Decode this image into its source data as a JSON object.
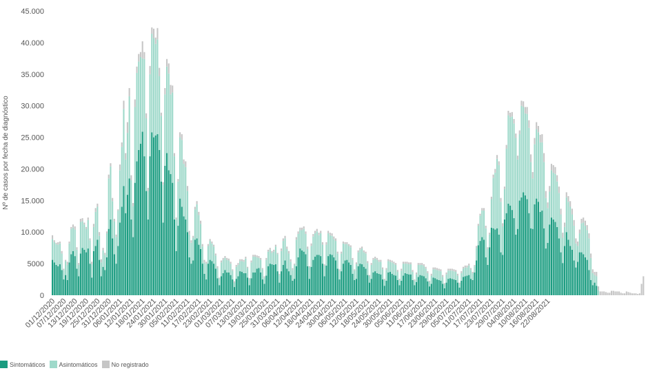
{
  "chart_data": {
    "type": "bar",
    "stacked": true,
    "ylabel": "Nº de casos por fecha de diagnóstico",
    "ylim": [
      0,
      45000
    ],
    "yticks": [
      0,
      5000,
      10000,
      15000,
      20000,
      25000,
      30000,
      35000,
      40000,
      45000
    ],
    "ytick_labels": [
      "0",
      "5000",
      "10.000",
      "15.000",
      "20.000",
      "25.000",
      "30.000",
      "35.000",
      "40.000",
      "45.000"
    ],
    "grid": false,
    "legend_position": "bottom-left",
    "x_start": "01/12/2020",
    "x_end": "25/08/2021",
    "x_tick_every_days": 6,
    "x_tick_labels": [
      "01/12/2020",
      "07/12/2020",
      "13/12/2020",
      "19/12/2020",
      "25/12/2020",
      "31/12/2020",
      "06/01/2021",
      "12/01/2021",
      "18/01/2021",
      "24/01/2021",
      "30/01/2021",
      "05/02/2021",
      "11/02/2021",
      "17/02/2021",
      "23/02/2021",
      "01/03/2021",
      "07/03/2021",
      "13/03/2021",
      "19/03/2021",
      "25/03/2021",
      "31/03/2021",
      "06/04/2021",
      "12/04/2021",
      "18/04/2021",
      "24/04/2021",
      "30/04/2021",
      "06/05/2021",
      "12/05/2021",
      "18/05/2021",
      "24/05/2021",
      "30/05/2021",
      "05/06/2021",
      "11/06/2021",
      "17/06/2021",
      "23/06/2021",
      "29/06/2021",
      "05/07/2021",
      "11/07/2021",
      "17/07/2021",
      "23/07/2021",
      "29/07/2021",
      "04/08/2021",
      "10/08/2021",
      "16/08/2021",
      "22/08/2021"
    ],
    "series": [
      {
        "name": "Sintomáticos",
        "color": "#1a9c80",
        "values": [
          5600,
          5200,
          4800,
          4600,
          4900,
          4000,
          2500,
          3200,
          2400,
          5200,
          6500,
          7000,
          6200,
          4200,
          3000,
          6600,
          7500,
          7200,
          6800,
          7400,
          5000,
          2800,
          7000,
          7800,
          8800,
          5600,
          3000,
          4500,
          4000,
          6000,
          10500,
          12000,
          9000,
          6500,
          5000,
          7800,
          11500,
          14000,
          17300,
          13000,
          15900,
          18500,
          12000,
          9200,
          17800,
          21200,
          23000,
          24000,
          25900,
          22000,
          16500,
          12000,
          22000,
          25800,
          25000,
          25300,
          25500,
          23000,
          18000,
          11500,
          20500,
          22500,
          19800,
          19200,
          17800,
          12000,
          7000,
          11000,
          15300,
          14000,
          12500,
          12000,
          10000,
          6000,
          5000,
          5500,
          8800,
          9000,
          8000,
          7300,
          5000,
          3400,
          2500,
          5000,
          5600,
          5400,
          5000,
          4200,
          2700,
          1600,
          3000,
          3500,
          4000,
          3600,
          3600,
          3200,
          2500,
          1300,
          2600,
          3000,
          3800,
          3700,
          3500,
          3500,
          2800,
          1600,
          2700,
          3600,
          3600,
          4200,
          4300,
          3600,
          2500,
          1800,
          3100,
          4600,
          5000,
          4900,
          4800,
          4900,
          3800,
          2000,
          3800,
          4800,
          5500,
          4200,
          3800,
          3200,
          2300,
          2600,
          4600,
          6000,
          7400,
          7100,
          6900,
          6500,
          4600,
          2600,
          4500,
          5600,
          6100,
          6400,
          6400,
          6200,
          5000,
          3000,
          4700,
          6200,
          6500,
          6400,
          6000,
          5500,
          4200,
          2500,
          3800,
          5000,
          5500,
          5600,
          5200,
          4800,
          3400,
          2400,
          2600,
          4600,
          5000,
          4900,
          4500,
          4200,
          3200,
          2000,
          2600,
          3600,
          3800,
          3500,
          3400,
          3300,
          2500,
          1500,
          2300,
          3600,
          3700,
          3400,
          3200,
          3100,
          2400,
          1600,
          2300,
          3100,
          3500,
          3400,
          3300,
          3300,
          2400,
          1600,
          2100,
          2900,
          3200,
          3100,
          3000,
          2700,
          2200,
          1400,
          1800,
          2800,
          2700,
          2500,
          2400,
          2300,
          1800,
          1100,
          2000,
          2600,
          2700,
          2600,
          2500,
          2400,
          2000,
          1200,
          2300,
          2900,
          3000,
          3100,
          3200,
          2600,
          2400,
          3600,
          5500,
          7900,
          8600,
          9200,
          8800,
          6000,
          4800,
          7600,
          10700,
          10600,
          10400,
          10600,
          9600,
          6800,
          6400,
          12000,
          13000,
          14500,
          14200,
          13500,
          12200,
          9600,
          10500,
          15000,
          15500,
          16300,
          15800,
          15200,
          13000,
          10600,
          10500,
          14400,
          15300,
          14800,
          13200,
          13400,
          10600,
          7400,
          8300,
          11200,
          12300,
          12000,
          11600,
          10800,
          9000,
          6800,
          5100,
          7800,
          10000,
          8800,
          7800,
          7200,
          5500,
          4400,
          5300,
          6800,
          6800,
          6500,
          6000,
          5600,
          4000,
          2400,
          1600,
          2000,
          1500
        ]
      },
      {
        "name": "Asintomáticos",
        "color": "#9ed9ca",
        "values": [
          3300,
          3200,
          3300,
          3400,
          3300,
          2600,
          1500,
          2200,
          2400,
          3000,
          4000,
          3700,
          4200,
          3000,
          1800,
          5000,
          4200,
          4000,
          3700,
          4500,
          3700,
          2100,
          3800,
          5400,
          5200,
          3800,
          2200,
          2600,
          2400,
          3800,
          8000,
          8400,
          5900,
          5200,
          4200,
          5600,
          8300,
          9500,
          12200,
          8500,
          9800,
          13000,
          6200,
          4900,
          12000,
          14000,
          14000,
          13700,
          11600,
          15400,
          11500,
          4500,
          13000,
          15600,
          15700,
          14500,
          15000,
          11700,
          10400,
          6000,
          11300,
          13700,
          15300,
          12600,
          14300,
          10000,
          5000,
          7000,
          9700,
          10600,
          8300,
          8300,
          6500,
          3600,
          3300,
          3600,
          4800,
          5400,
          4700,
          4000,
          2700,
          1800,
          2500,
          2800,
          3000,
          2800,
          2700,
          2100,
          1600,
          1000,
          2200,
          2100,
          1900,
          2000,
          1900,
          1800,
          1400,
          700,
          1900,
          1800,
          1600,
          1700,
          1800,
          2300,
          1500,
          900,
          2500,
          2500,
          2500,
          1800,
          1600,
          2000,
          1600,
          1000,
          2500,
          2300,
          2200,
          1800,
          2100,
          2800,
          2700,
          1200,
          3200,
          3800,
          3500,
          3100,
          2800,
          2100,
          1700,
          2200,
          4200,
          3700,
          2900,
          3200,
          3600,
          3200,
          2700,
          1800,
          3300,
          3700,
          3700,
          3700,
          3100,
          3600,
          3000,
          1700,
          3300,
          3600,
          3000,
          3000,
          2900,
          3100,
          2400,
          1400,
          2800,
          3200,
          2600,
          2500,
          2600,
          2800,
          2200,
          1500,
          2300,
          2200,
          2200,
          2500,
          2300,
          2400,
          1900,
          1000,
          2200,
          2000,
          2000,
          2100,
          1900,
          2000,
          1600,
          900,
          1700,
          1800,
          1600,
          1800,
          1800,
          1700,
          1300,
          800,
          1600,
          1900,
          1500,
          1600,
          1600,
          1600,
          1300,
          700,
          1200,
          1900,
          1600,
          1700,
          1600,
          1500,
          1300,
          700,
          1300,
          1300,
          1400,
          1500,
          1500,
          1500,
          1100,
          600,
          1300,
          1300,
          1200,
          1300,
          1300,
          1300,
          1100,
          600,
          1200,
          1300,
          1400,
          1300,
          1500,
          1400,
          1100,
          1000,
          2000,
          3100,
          4000,
          4200,
          4600,
          4600,
          2500,
          2000,
          4500,
          8000,
          9000,
          11000,
          11000,
          8000,
          4500,
          4800,
          10200,
          14000,
          14000,
          14800,
          15000,
          15300,
          11000,
          10500,
          14500,
          13500,
          13000,
          13500,
          13500,
          10500,
          8000,
          9500,
          11000,
          11000,
          11000,
          10800,
          10500,
          8000,
          5500,
          5200,
          7500,
          7400,
          7600,
          7200,
          7200,
          6000,
          4000,
          3000,
          5500,
          6000,
          6200,
          5600,
          5500,
          3800,
          2500,
          3000,
          4600,
          5000,
          5000,
          4700,
          5000,
          3500,
          1900,
          1200,
          1500,
          800
        ]
      },
      {
        "name": "No registrado",
        "color": "#c6c6c6",
        "values": [
          600,
          300,
          200,
          400,
          300,
          400,
          200,
          200,
          500,
          300,
          300,
          500,
          500,
          400,
          300,
          500,
          500,
          300,
          300,
          400,
          300,
          400,
          500,
          600,
          500,
          600,
          500,
          400,
          300,
          300,
          600,
          500,
          500,
          400,
          400,
          200,
          900,
          700,
          1300,
          1000,
          1700,
          1300,
          800,
          500,
          1200,
          1000,
          1200,
          800,
          2700,
          1100,
          800,
          500,
          1300,
          1000,
          1500,
          1000,
          1800,
          1300,
          500,
          400,
          1000,
          1200,
          1600,
          1500,
          1100,
          500,
          300,
          400,
          800,
          900,
          700,
          900,
          800,
          600,
          400,
          300,
          400,
          500,
          500,
          500,
          400,
          400,
          300,
          300,
          300,
          300,
          300,
          300,
          300,
          200,
          300,
          300,
          300,
          300,
          300,
          300,
          200,
          200,
          300,
          300,
          300,
          300,
          300,
          300,
          200,
          200,
          300,
          300,
          300,
          300,
          300,
          300,
          200,
          200,
          300,
          300,
          300,
          300,
          300,
          300,
          200,
          200,
          400,
          400,
          400,
          400,
          400,
          400,
          300,
          200,
          400,
          400,
          400,
          400,
          400,
          400,
          400,
          200,
          400,
          400,
          400,
          400,
          400,
          400,
          400,
          200,
          400,
          400,
          400,
          400,
          400,
          400,
          300,
          200,
          300,
          300,
          300,
          300,
          300,
          300,
          300,
          200,
          300,
          300,
          300,
          300,
          300,
          300,
          300,
          200,
          300,
          300,
          300,
          300,
          300,
          300,
          300,
          200,
          300,
          300,
          300,
          300,
          300,
          300,
          300,
          200,
          300,
          300,
          300,
          300,
          300,
          300,
          300,
          200,
          300,
          300,
          300,
          300,
          300,
          300,
          300,
          200,
          300,
          300,
          300,
          300,
          300,
          300,
          300,
          200,
          300,
          300,
          300,
          300,
          300,
          300,
          300,
          200,
          300,
          300,
          300,
          300,
          300,
          300,
          200,
          200,
          300,
          300,
          300,
          400,
          400,
          400,
          300,
          300,
          400,
          500,
          600,
          600,
          600,
          600,
          500,
          400,
          600,
          700,
          700,
          700,
          700,
          700,
          600,
          600,
          800,
          900,
          1000,
          1100,
          1200,
          1200,
          1000,
          1000,
          1100,
          1000,
          1200,
          1300,
          1400,
          1100,
          900,
          900,
          1000,
          1200,
          1100,
          1000,
          1000,
          900,
          800,
          700,
          800,
          900,
          900,
          900,
          900,
          800,
          700,
          600,
          700,
          800,
          800,
          800,
          800,
          700,
          600,
          500,
          700,
          600,
          600,
          600,
          600,
          500,
          400,
          400,
          700,
          700,
          600,
          600,
          600,
          400,
          300,
          300,
          600,
          500,
          400,
          300,
          300,
          300,
          200,
          300,
          1800,
          3000
        ]
      }
    ]
  }
}
